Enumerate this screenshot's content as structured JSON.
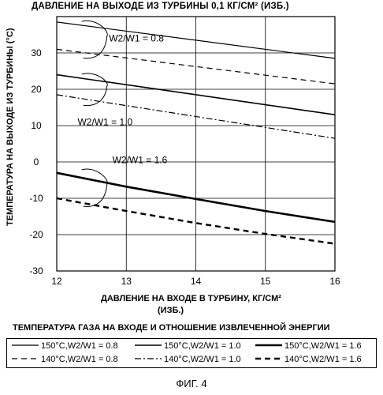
{
  "chart_data": {
    "type": "line",
    "title": "ДАВЛЕНИЕ НА ВЫХОДЕ ИЗ ТУРБИНЫ 0,1 КГ/СМ² (ИЗБ.)",
    "xlabel_line1": "ДАВЛЕНИЕ НА ВХОДЕ В ТУРБИНУ, КГ/СМ²",
    "xlabel_line2": "(ИЗБ.)",
    "ylabel": "ТЕМПЕРАТУРА НА ВЫХОДЕ ИЗ ТУРБИНЫ (°С)",
    "xlim": [
      12,
      16
    ],
    "ylim": [
      -30,
      40
    ],
    "xticks": [
      "12",
      "13",
      "14",
      "15",
      "16"
    ],
    "yticks": [
      "-30",
      "-20",
      "-10",
      "0",
      "10",
      "20",
      "30"
    ],
    "grid": true,
    "legend_title": "ТЕМПЕРАТУРА ГАЗА НА ВХОДЕ И ОТНОШЕНИЕ ИЗВЛЕЧЕННОЙ ЭНЕРГИИ",
    "legend_placement": "bottom",
    "series": [
      {
        "name": "150°C,W2/W1 = 0.8",
        "style": "solid-thin",
        "x": [
          12,
          16
        ],
        "y": [
          38.5,
          28.5
        ]
      },
      {
        "name": "150°C,W2/W1 = 1.0",
        "style": "solid-medium",
        "x": [
          12,
          16
        ],
        "y": [
          24,
          13
        ]
      },
      {
        "name": "150°C,W2/W1 = 1.6",
        "style": "solid-thick",
        "x": [
          12,
          13,
          14,
          15,
          16
        ],
        "y": [
          -3,
          -6.8,
          -10.2,
          -13.5,
          -16.5
        ]
      },
      {
        "name": "140°C,W2/W1 = 0.8",
        "style": "dashed-thin",
        "x": [
          12,
          16
        ],
        "y": [
          31,
          21.5
        ]
      },
      {
        "name": "140°C,W2/W1 = 1.0",
        "style": "dashdot",
        "x": [
          12,
          16
        ],
        "y": [
          18.5,
          6.5
        ]
      },
      {
        "name": "140°C,W2/W1 = 1.6",
        "style": "dashed-thick",
        "x": [
          12,
          13,
          14,
          15,
          16
        ],
        "y": [
          -10,
          -13.5,
          -16.8,
          -19.8,
          -22.5
        ]
      }
    ],
    "annotations": [
      {
        "text": "W2/W1 = 0.8",
        "x": 12.75,
        "y": 34
      },
      {
        "text": "W2/W1 = 1.0",
        "x": 12.3,
        "y": 11
      },
      {
        "text": "W2/W1 = 1.6",
        "x": 12.8,
        "y": 0.5
      }
    ]
  },
  "figure_caption": "ФИГ. 4"
}
